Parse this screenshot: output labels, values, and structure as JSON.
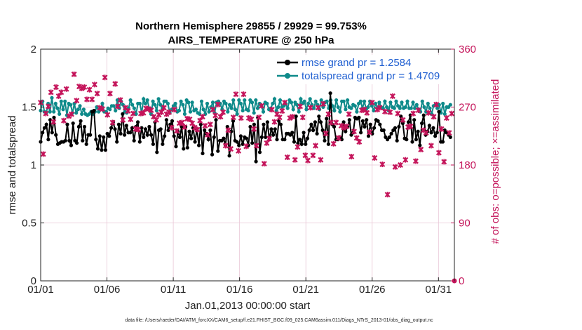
{
  "chart_data": {
    "type": "line",
    "title": "Northern Hemisphere 29855 / 29929 = 99.753%",
    "subtitle": "AIRS_TEMPERATURE @ 250 hPa",
    "xlabel": "Jan.01,2013 00:00:00 start",
    "ylabel": "rmse and totalspread",
    "ylabel_right": "# of obs: o=possible; ×=assimilated",
    "footer": "data file: /Users/raeder/DAI/ATM_forcXX/CAM6_setup/f.e21.FHIST_BGC.f09_025.CAM6assim.011/Diags_NTrS_2013-01/obs_diag_output.nc",
    "ylim": [
      0,
      2
    ],
    "ylim_right": [
      0,
      360
    ],
    "xlim": [
      1,
      32.2
    ],
    "x_ticks": [
      1,
      6,
      11,
      16,
      21,
      26,
      31
    ],
    "x_tick_labels": [
      "01/01",
      "01/06",
      "01/11",
      "01/16",
      "01/21",
      "01/26",
      "01/31"
    ],
    "y_ticks": [
      "0",
      "0.5",
      "1",
      "1.5",
      "2"
    ],
    "y_ticks_right": [
      "0",
      "90",
      "180",
      "270",
      "360"
    ],
    "grid": true,
    "legend": {
      "placement": "top-right",
      "entries": [
        "rmse grand pr = 1.2584",
        "totalspread grand pr = 1.4709"
      ]
    },
    "colors": {
      "rmse": "#000000",
      "spread": "#0e8a8a",
      "obs": "#c4145a",
      "legend_text": "#1f5fd1",
      "grid": "#e8c6d6"
    },
    "series": [
      {
        "name": "rmse",
        "values": [
          1.2,
          1.28,
          1.32,
          1.35,
          1.22,
          1.39,
          1.28,
          1.41,
          1.26,
          1.18,
          1.19,
          1.2,
          1.2,
          1.21,
          1.35,
          1.21,
          1.17,
          1.36,
          1.21,
          1.19,
          1.33,
          1.38,
          1.21,
          1.33,
          1.18,
          1.26,
          1.26,
          1.46,
          1.47,
          1.22,
          1.14,
          1.25,
          1.13,
          1.24,
          1.13,
          1.27,
          1.25,
          1.32,
          1.37,
          1.31,
          1.2,
          1.35,
          1.27,
          1.44,
          1.26,
          1.34,
          1.28,
          1.28,
          1.32,
          1.21,
          1.33,
          1.37,
          1.2,
          1.32,
          1.24,
          1.31,
          1.26,
          1.33,
          1.26,
          1.18,
          1.37,
          1.11,
          1.3,
          1.31,
          1.18,
          1.25,
          1.39,
          1.3,
          1.35,
          1.38,
          1.25,
          1.16,
          1.29,
          1.24,
          1.33,
          1.14,
          1.33,
          1.15,
          1.29,
          1.23,
          1.32,
          1.2,
          1.31,
          1.17,
          1.35,
          1.1,
          1.3,
          1.27,
          1.22,
          1.3,
          1.09,
          1.24,
          1.39,
          1.12,
          1.21,
          1.21,
          1.23,
          1.17,
          1.33,
          1.08,
          1.29,
          1.38,
          1.21,
          1.2,
          1.17,
          1.25,
          1.18,
          1.24,
          1.23,
          1.17,
          1.33,
          1.19,
          1.35,
          1.03,
          1.41,
          1.11,
          1.24,
          1.35,
          1.24,
          1.37,
          1.22,
          1.31,
          1.26,
          1.31,
          1.22,
          1.38,
          1.35,
          1.22,
          1.22,
          1.27,
          1.27,
          1.26,
          1.28,
          1.2,
          1.42,
          1.19,
          1.22,
          1.18,
          1.28,
          1.18,
          1.23,
          1.3,
          1.35,
          1.3,
          1.37,
          1.27,
          1.42,
          1.37,
          1.3,
          1.21,
          1.4,
          1.18,
          1.62,
          1.35,
          1.33,
          1.22,
          1.22,
          1.24,
          1.22,
          1.37,
          1.29,
          1.33,
          1.39,
          1.26,
          1.28,
          1.41,
          1.4,
          1.41,
          1.28,
          1.38,
          1.33,
          1.39,
          1.25,
          1.35,
          1.27,
          1.32,
          1.39,
          1.38,
          1.35,
          1.3,
          1.3,
          1.24,
          1.22,
          1.24,
          1.27,
          1.3,
          1.32,
          1.21,
          1.33,
          1.42,
          1.36,
          1.23,
          1.22,
          1.37,
          1.43,
          1.2,
          1.39,
          1.22,
          1.29,
          1.17,
          1.36,
          1.43,
          1.26,
          1.29,
          1.34,
          1.28,
          1.32,
          1.25,
          1.28,
          1.46,
          1.2,
          1.2,
          1.3,
          1.28,
          1.26,
          1.24
        ]
      },
      {
        "name": "totalspread",
        "values": [
          1.47,
          1.55,
          1.46,
          1.45,
          1.53,
          1.46,
          1.58,
          1.46,
          1.53,
          1.49,
          1.44,
          1.55,
          1.48,
          1.55,
          1.43,
          1.53,
          1.52,
          1.45,
          1.53,
          1.45,
          1.48,
          1.51,
          1.44,
          1.48,
          1.44,
          1.43,
          1.44,
          1.46,
          1.44,
          1.46,
          1.5,
          1.46,
          1.48,
          1.53,
          1.46,
          1.46,
          1.49,
          1.48,
          1.51,
          1.51,
          1.47,
          1.56,
          1.49,
          1.55,
          1.52,
          1.46,
          1.45,
          1.49,
          1.56,
          1.52,
          1.49,
          1.44,
          1.53,
          1.53,
          1.45,
          1.57,
          1.53,
          1.56,
          1.49,
          1.44,
          1.55,
          1.52,
          1.47,
          1.57,
          1.52,
          1.48,
          1.55,
          1.55,
          1.53,
          1.45,
          1.48,
          1.51,
          1.53,
          1.46,
          1.47,
          1.55,
          1.52,
          1.44,
          1.56,
          1.54,
          1.46,
          1.54,
          1.47,
          1.48,
          1.45,
          1.44,
          1.55,
          1.48,
          1.44,
          1.53,
          1.46,
          1.5,
          1.54,
          1.45,
          1.54,
          1.55,
          1.53,
          1.48,
          1.55,
          1.53,
          1.46,
          1.52,
          1.49,
          1.56,
          1.48,
          1.44,
          1.56,
          1.53,
          1.47,
          1.56,
          1.48,
          1.47,
          1.56,
          1.54,
          1.45,
          1.56,
          1.49,
          1.53,
          1.51,
          1.46,
          1.54,
          1.53,
          1.48,
          1.49,
          1.53,
          1.57,
          1.47,
          1.5,
          1.56,
          1.5,
          1.51,
          1.53,
          1.49,
          1.56,
          1.54,
          1.48,
          1.54,
          1.52,
          1.46,
          1.57,
          1.53,
          1.55,
          1.48,
          1.53,
          1.57,
          1.52,
          1.49,
          1.55,
          1.52,
          1.48,
          1.56,
          1.5,
          1.54,
          1.55,
          1.49,
          1.56,
          1.51,
          1.47,
          1.56,
          1.5,
          1.46,
          1.55,
          1.55,
          1.48,
          1.56,
          1.5,
          1.49,
          1.52,
          1.51,
          1.46,
          1.53,
          1.55,
          1.49,
          1.55,
          1.48,
          1.5,
          1.55,
          1.51,
          1.47,
          1.53,
          1.49,
          1.54,
          1.5,
          1.49,
          1.55,
          1.5,
          1.47,
          1.54,
          1.5,
          1.49,
          1.55,
          1.51,
          1.49,
          1.54,
          1.49,
          1.5,
          1.55,
          1.49,
          1.49,
          1.54,
          1.49,
          1.52,
          1.48,
          1.46,
          1.55,
          1.5,
          1.46,
          1.53,
          1.49,
          1.44,
          1.51,
          1.52,
          1.49,
          1.52,
          1.45,
          1.53,
          1.44,
          1.5,
          1.5,
          1.52
        ]
      },
      {
        "name": "obs_assimilated",
        "values": [
          277,
          197,
          260,
          271,
          293,
          247,
          301,
          287,
          293,
          249,
          298,
          256,
          259,
          321,
          280,
          302,
          299,
          301,
          282,
          297,
          282,
          305,
          291,
          269,
          267,
          316,
          258,
          291,
          246,
          306,
          271,
          281,
          250,
          269,
          264,
          251,
          260,
          236,
          235,
          260,
          261,
          268,
          267,
          265,
          255,
          250,
          258,
          262,
          269,
          259,
          262,
          238,
          266,
          233,
          245,
          246,
          239,
          252,
          251,
          245,
          238,
          235,
          249,
          255,
          241,
          227,
          243,
          266,
          257,
          274,
          255,
          262,
          210,
          234,
          205,
          254,
          290,
          202,
          253,
          290,
          209,
          253,
          251,
          236,
          210,
          254,
          272,
          182,
          214,
          221,
          266,
          247,
          259,
          254,
          264,
          277,
          192,
          253,
          255,
          188,
          208,
          271,
          254,
          195,
          187,
          269,
          195,
          210,
          269,
          188,
          275,
          229,
          259,
          246,
          213,
          246,
          222,
          241,
          238,
          240,
          259,
          193,
          232,
          222,
          216,
          265,
          266,
          261,
          231,
          277,
          191,
          266,
          269,
          181,
          263,
          134,
          262,
          287,
          177,
          260,
          180,
          250,
          188,
          239,
          240,
          260,
          186,
          265,
          204,
          234,
          230,
          261,
          210,
          255,
          274,
          199,
          236,
          185,
          253,
          230,
          260
        ]
      }
    ]
  }
}
